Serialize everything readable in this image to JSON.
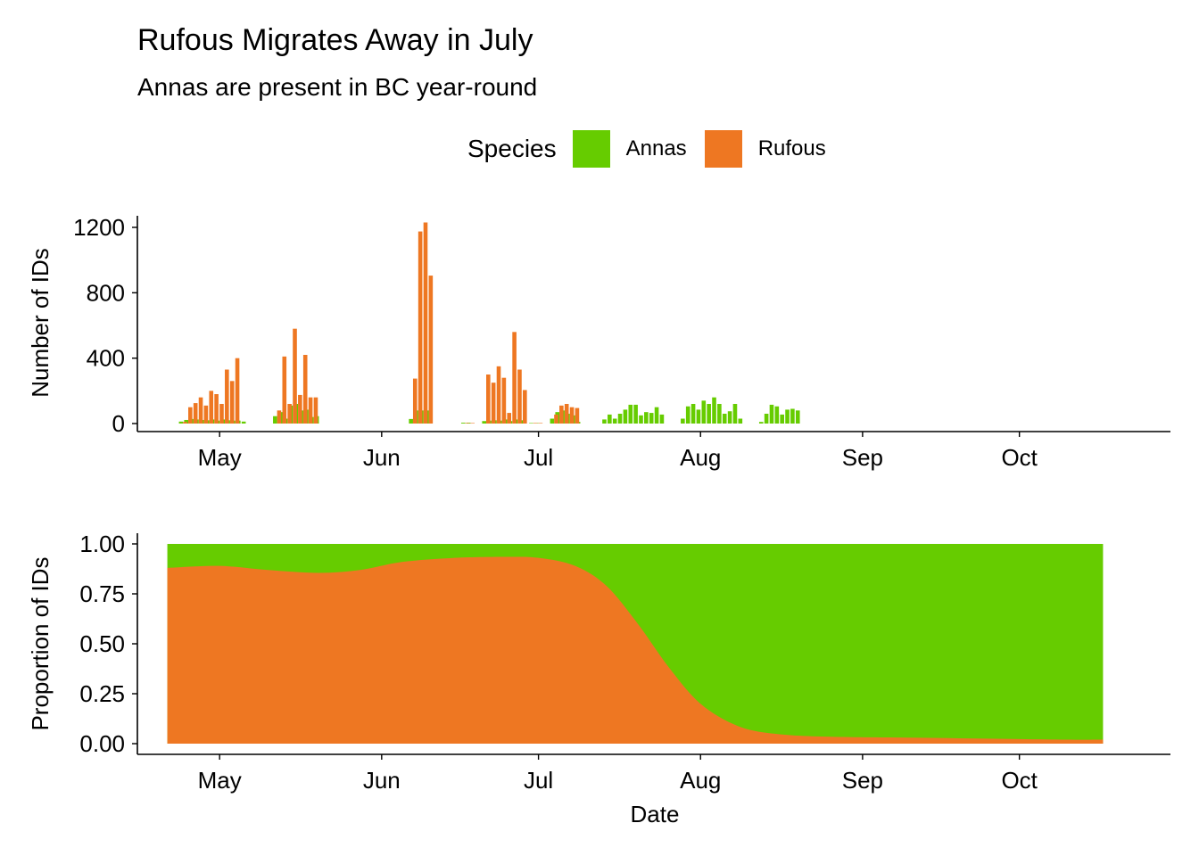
{
  "title": "Rufous Migrates Away in July",
  "subtitle": "Annas are present in BC year-round",
  "legend": {
    "title": "Species",
    "items": [
      {
        "label": "Annas",
        "color": "#66CC00"
      },
      {
        "label": "Rufous",
        "color": "#EE7722"
      }
    ]
  },
  "chart_data": [
    {
      "type": "bar",
      "ylabel": "Number of IDs",
      "xlabel": "",
      "x_ticks": [
        "May",
        "Jun",
        "Jul",
        "Aug",
        "Sep",
        "Oct"
      ],
      "y_ticks": [
        "0",
        "400",
        "800",
        "1200"
      ],
      "ylim": [
        0,
        1280
      ],
      "xlim": [
        "2019-04-18",
        "2019-10-20"
      ],
      "grid": false,
      "series": [
        {
          "name": "Annas",
          "color": "#66CC00",
          "points": [
            [
              "2019-04-24",
              12
            ],
            [
              "2019-04-25",
              22
            ],
            [
              "2019-04-26",
              28
            ],
            [
              "2019-04-27",
              25
            ],
            [
              "2019-04-28",
              22
            ],
            [
              "2019-04-29",
              20
            ],
            [
              "2019-04-30",
              25
            ],
            [
              "2019-05-01",
              18
            ],
            [
              "2019-05-02",
              25
            ],
            [
              "2019-05-03",
              20
            ],
            [
              "2019-05-04",
              18
            ],
            [
              "2019-05-05",
              18
            ],
            [
              "2019-05-06",
              12
            ],
            [
              "2019-05-12",
              45
            ],
            [
              "2019-05-13",
              70
            ],
            [
              "2019-05-14",
              30
            ],
            [
              "2019-05-15",
              110
            ],
            [
              "2019-05-16",
              120
            ],
            [
              "2019-05-17",
              80
            ],
            [
              "2019-05-18",
              85
            ],
            [
              "2019-05-19",
              40
            ],
            [
              "2019-05-20",
              45
            ],
            [
              "2019-06-07",
              28
            ],
            [
              "2019-06-08",
              80
            ],
            [
              "2019-06-09",
              80
            ],
            [
              "2019-06-10",
              80
            ],
            [
              "2019-06-17",
              5
            ],
            [
              "2019-06-18",
              5
            ],
            [
              "2019-06-21",
              15
            ],
            [
              "2019-06-22",
              18
            ],
            [
              "2019-06-23",
              20
            ],
            [
              "2019-06-24",
              18
            ],
            [
              "2019-06-25",
              25
            ],
            [
              "2019-06-26",
              15
            ],
            [
              "2019-06-27",
              25
            ],
            [
              "2019-06-28",
              20
            ],
            [
              "2019-06-30",
              3
            ],
            [
              "2019-07-01",
              3
            ],
            [
              "2019-07-04",
              30
            ],
            [
              "2019-07-05",
              70
            ],
            [
              "2019-07-06",
              80
            ],
            [
              "2019-07-07",
              60
            ],
            [
              "2019-07-08",
              50
            ],
            [
              "2019-07-09",
              10
            ],
            [
              "2019-07-14",
              25
            ],
            [
              "2019-07-15",
              55
            ],
            [
              "2019-07-16",
              30
            ],
            [
              "2019-07-17",
              60
            ],
            [
              "2019-07-18",
              85
            ],
            [
              "2019-07-19",
              115
            ],
            [
              "2019-07-20",
              115
            ],
            [
              "2019-07-21",
              50
            ],
            [
              "2019-07-22",
              70
            ],
            [
              "2019-07-23",
              65
            ],
            [
              "2019-07-24",
              100
            ],
            [
              "2019-07-25",
              55
            ],
            [
              "2019-07-29",
              30
            ],
            [
              "2019-07-30",
              105
            ],
            [
              "2019-07-31",
              120
            ],
            [
              "2019-08-01",
              85
            ],
            [
              "2019-08-02",
              140
            ],
            [
              "2019-08-03",
              120
            ],
            [
              "2019-08-04",
              160
            ],
            [
              "2019-08-05",
              120
            ],
            [
              "2019-08-06",
              60
            ],
            [
              "2019-08-07",
              75
            ],
            [
              "2019-08-08",
              120
            ],
            [
              "2019-08-09",
              30
            ],
            [
              "2019-08-13",
              10
            ],
            [
              "2019-08-14",
              60
            ],
            [
              "2019-08-15",
              115
            ],
            [
              "2019-08-16",
              105
            ],
            [
              "2019-08-17",
              55
            ],
            [
              "2019-08-18",
              85
            ],
            [
              "2019-08-19",
              90
            ],
            [
              "2019-08-20",
              80
            ]
          ]
        },
        {
          "name": "Rufous",
          "color": "#EE7722",
          "points": [
            [
              "2019-04-24",
              10
            ],
            [
              "2019-04-25",
              100
            ],
            [
              "2019-04-26",
              125
            ],
            [
              "2019-04-27",
              160
            ],
            [
              "2019-04-28",
              110
            ],
            [
              "2019-04-29",
              200
            ],
            [
              "2019-04-30",
              180
            ],
            [
              "2019-05-01",
              120
            ],
            [
              "2019-05-02",
              330
            ],
            [
              "2019-05-03",
              260
            ],
            [
              "2019-05-04",
              400
            ],
            [
              "2019-05-12",
              80
            ],
            [
              "2019-05-13",
              410
            ],
            [
              "2019-05-14",
              120
            ],
            [
              "2019-05-15",
              580
            ],
            [
              "2019-05-16",
              175
            ],
            [
              "2019-05-17",
              420
            ],
            [
              "2019-05-18",
              160
            ],
            [
              "2019-05-19",
              160
            ],
            [
              "2019-06-07",
              275
            ],
            [
              "2019-06-08",
              1175
            ],
            [
              "2019-06-09",
              1230
            ],
            [
              "2019-06-10",
              905
            ],
            [
              "2019-06-17",
              3
            ],
            [
              "2019-06-18",
              3
            ],
            [
              "2019-06-21",
              300
            ],
            [
              "2019-06-22",
              250
            ],
            [
              "2019-06-23",
              350
            ],
            [
              "2019-06-24",
              280
            ],
            [
              "2019-06-25",
              65
            ],
            [
              "2019-06-26",
              560
            ],
            [
              "2019-06-27",
              330
            ],
            [
              "2019-06-28",
              205
            ],
            [
              "2019-06-30",
              3
            ],
            [
              "2019-07-01",
              3
            ],
            [
              "2019-07-04",
              55
            ],
            [
              "2019-07-05",
              110
            ],
            [
              "2019-07-06",
              120
            ],
            [
              "2019-07-07",
              100
            ],
            [
              "2019-07-08",
              95
            ]
          ]
        }
      ]
    },
    {
      "type": "area",
      "ylabel": "Proportion of IDs",
      "xlabel": "Date",
      "x_ticks": [
        "May",
        "Jun",
        "Jul",
        "Aug",
        "Sep",
        "Oct"
      ],
      "y_ticks": [
        "0.00",
        "0.25",
        "0.50",
        "0.75",
        "1.00"
      ],
      "ylim": [
        0,
        1
      ],
      "xlim": [
        "2019-04-18",
        "2019-10-20"
      ],
      "stacked": true,
      "grid": false,
      "series": [
        {
          "name": "Rufous",
          "color": "#EE7722",
          "points": [
            [
              "2019-04-21",
              0.88
            ],
            [
              "2019-05-01",
              0.89
            ],
            [
              "2019-05-10",
              0.87
            ],
            [
              "2019-05-20",
              0.855
            ],
            [
              "2019-05-28",
              0.87
            ],
            [
              "2019-06-05",
              0.91
            ],
            [
              "2019-06-15",
              0.93
            ],
            [
              "2019-06-25",
              0.935
            ],
            [
              "2019-07-01",
              0.93
            ],
            [
              "2019-07-08",
              0.89
            ],
            [
              "2019-07-14",
              0.79
            ],
            [
              "2019-07-20",
              0.6
            ],
            [
              "2019-07-26",
              0.38
            ],
            [
              "2019-08-01",
              0.2
            ],
            [
              "2019-08-08",
              0.09
            ],
            [
              "2019-08-15",
              0.05
            ],
            [
              "2019-08-25",
              0.035
            ],
            [
              "2019-09-10",
              0.03
            ],
            [
              "2019-09-25",
              0.025
            ],
            [
              "2019-10-10",
              0.02
            ],
            [
              "2019-10-17",
              0.02
            ]
          ]
        },
        {
          "name": "Annas",
          "color": "#66CC00",
          "fills_to": 1.0
        }
      ]
    }
  ]
}
